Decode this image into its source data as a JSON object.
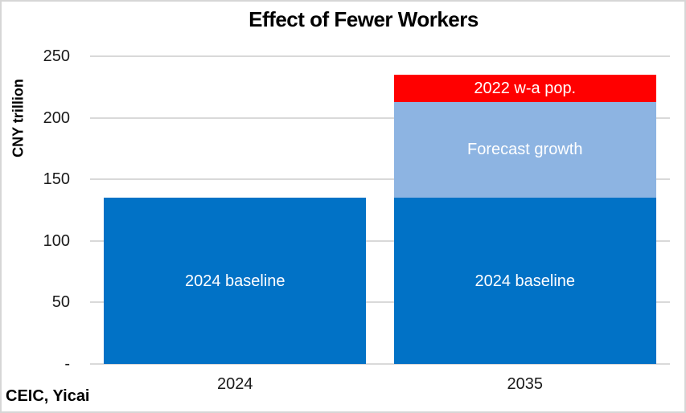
{
  "chart_data": {
    "type": "bar",
    "stacked": true,
    "title": "Effect of Fewer Workers",
    "ylabel": "CNY trillion",
    "xlabel": "",
    "source": "CEIC, Yicai",
    "categories": [
      "2024",
      "2035"
    ],
    "series": [
      {
        "name": "2024 baseline",
        "color": "#0172C6",
        "values": [
          135,
          135
        ]
      },
      {
        "name": "Forecast growth",
        "color": "#8DB4E2",
        "values": [
          0,
          78
        ]
      },
      {
        "name": "2022 w-a pop.",
        "color": "#FF0000",
        "values": [
          0,
          22
        ]
      }
    ],
    "ylim": [
      0,
      250
    ],
    "yticks": [
      0,
      50,
      100,
      150,
      200,
      250
    ],
    "ytick_labels": [
      "-",
      "50",
      "100",
      "150",
      "200",
      "250"
    ],
    "grid": true,
    "legend_position": "none",
    "segment_labels_inline": true,
    "colors": {
      "baseline": "#0172C6",
      "forecast_growth": "#8DB4E2",
      "wa_pop_2022": "#FF0000",
      "gridline": "#D9D9D9",
      "frame_border": "#D6D6D6",
      "label_text": "#FFFFFF",
      "axis_text": "#1A1A1A"
    },
    "bar_width_pct": 45.2
  }
}
